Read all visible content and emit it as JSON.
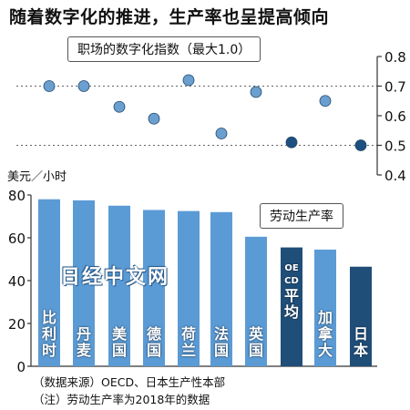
{
  "title": "随着数字化的推进，生产率也呈提高倾向",
  "notes": [
    "（数据来源）OECD、日本生产性本部",
    "（注）劳动生产率为2018年的数据"
  ],
  "watermark": "日经中文网",
  "chart_data": [
    {
      "type": "scatter",
      "title": "职场的数字化指数（最大1.0）",
      "categories": [
        "比利时",
        "丹麦",
        "美国",
        "德国",
        "荷兰",
        "法国",
        "英国",
        "OECD平均",
        "加拿大",
        "日本"
      ],
      "values": [
        0.7,
        0.7,
        0.63,
        0.59,
        0.72,
        0.54,
        0.68,
        0.51,
        0.65,
        0.5
      ],
      "ylim": [
        0.4,
        0.8
      ],
      "yticks": [
        "0.8",
        "0.7",
        "0.6",
        "0.5",
        "0.4"
      ],
      "grid": "dotted at 0.7 and 0.5",
      "colors": {
        "normal": "#6a9fd0",
        "highlight": "#1d4f80"
      }
    },
    {
      "type": "bar",
      "title": "劳动生产率",
      "ylabel": "美元／小时",
      "categories": [
        "比利时",
        "丹麦",
        "美国",
        "德国",
        "荷兰",
        "法国",
        "英国",
        "OECD平均",
        "加拿大",
        "日本"
      ],
      "bar_labels": [
        "比利时",
        "丹麦",
        "美国",
        "德国",
        "荷兰",
        "法国",
        "英国",
        "OECD平均",
        "加拿大",
        "日本"
      ],
      "values": [
        78,
        77.5,
        75,
        73,
        72.5,
        72,
        60.5,
        55.5,
        54.5,
        46.5
      ],
      "ylim": [
        0,
        80
      ],
      "yticks": [
        "80",
        "60",
        "40",
        "20",
        "0"
      ],
      "colors": {
        "normal": "#5b9bd5",
        "highlight": "#1f4e79"
      }
    }
  ]
}
